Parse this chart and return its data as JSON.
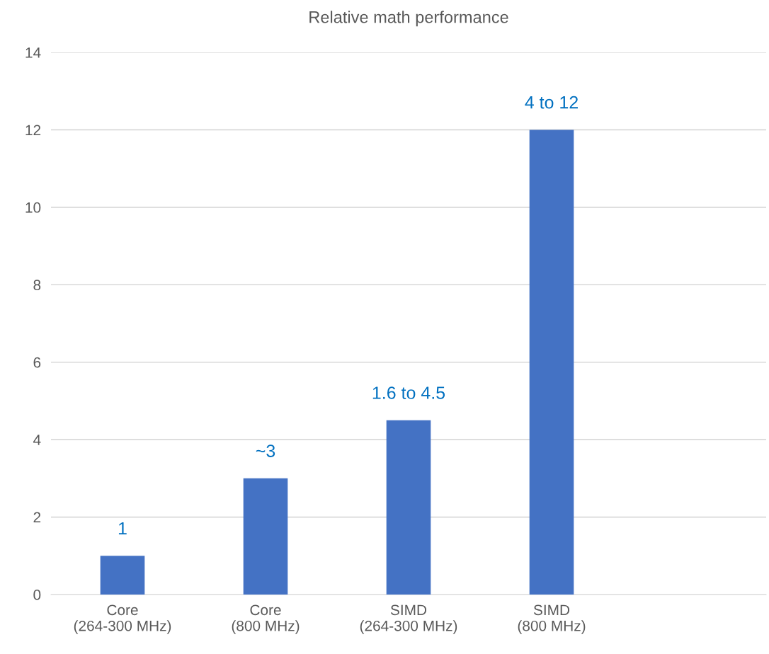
{
  "chart_data": {
    "type": "bar",
    "title": "Relative math performance",
    "categories": [
      "Core\n(264-300 MHz)",
      "Core\n(800 MHz)",
      "SIMD\n(264-300 MHz)",
      "SIMD\n(800 MHz)",
      null
    ],
    "values": [
      1,
      3,
      4.5,
      12,
      null
    ],
    "value_labels": [
      "1",
      "~3",
      "1.6 to 4.5",
      "4 to 12",
      null
    ],
    "color": "#4472c4",
    "ylim": [
      0,
      14
    ],
    "yticks": [
      0,
      2,
      4,
      6,
      8,
      10,
      12,
      14
    ],
    "grid": "y"
  }
}
